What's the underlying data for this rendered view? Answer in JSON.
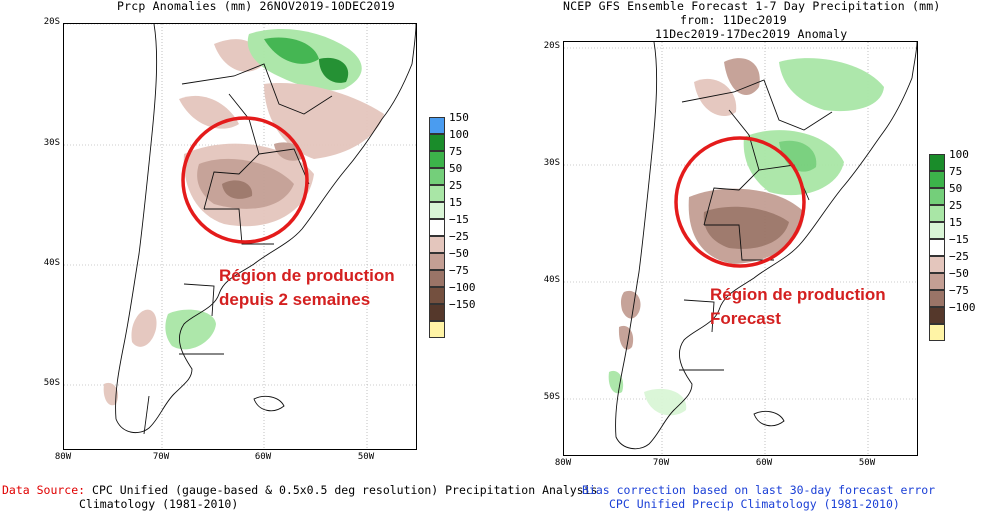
{
  "left": {
    "title": "Prcp Anomalies (mm) 26NOV2019-10DEC2019",
    "lat_labels": [
      "20S",
      "30S",
      "40S",
      "50S"
    ],
    "lon_labels": [
      "80W",
      "70W",
      "60W",
      "50W"
    ],
    "legend": [
      {
        "label": "150",
        "color": "#4a9cf0"
      },
      {
        "label": "100",
        "color": "#1a8c2a"
      },
      {
        "label": "75",
        "color": "#3cb34a"
      },
      {
        "label": "50",
        "color": "#74cf7a"
      },
      {
        "label": "25",
        "color": "#a9e6a6"
      },
      {
        "label": "15",
        "color": "#d9f5d6"
      },
      {
        "label": "−15",
        "color": "#ffffff"
      },
      {
        "label": "−25",
        "color": "#e4c6bd"
      },
      {
        "label": "−50",
        "color": "#c49f94"
      },
      {
        "label": "−75",
        "color": "#9a7467"
      },
      {
        "label": "−100",
        "color": "#74503f"
      },
      {
        "label": "−150",
        "color": "#55382b"
      }
    ],
    "legend_bottom_color": "#fff4a6",
    "annotation_line1": "Région de production",
    "annotation_line2": "depuis 2 semaines",
    "footer_label": "Data Source:",
    "footer_line1": "CPC Unified (gauge-based & 0.5x0.5 deg resolution) Precipitation Analysis",
    "footer_line2": "Climatology (1981-2010)"
  },
  "right": {
    "title_line1": "NCEP GFS Ensemble Forecast 1-7 Day Precipitation (mm)",
    "title_line2": "from: 11Dec2019",
    "title_line3": "11Dec2019-17Dec2019 Anomaly",
    "lat_labels": [
      "20S",
      "30S",
      "40S",
      "50S"
    ],
    "lon_labels": [
      "80W",
      "70W",
      "60W",
      "50W"
    ],
    "legend": [
      {
        "label": "100",
        "color": "#1a8c2a"
      },
      {
        "label": "75",
        "color": "#3cb34a"
      },
      {
        "label": "50",
        "color": "#74cf7a"
      },
      {
        "label": "25",
        "color": "#a9e6a6"
      },
      {
        "label": "15",
        "color": "#d9f5d6"
      },
      {
        "label": "−15",
        "color": "#ffffff"
      },
      {
        "label": "−25",
        "color": "#e4c6bd"
      },
      {
        "label": "−50",
        "color": "#c49f94"
      },
      {
        "label": "−75",
        "color": "#9a7467"
      },
      {
        "label": "−100",
        "color": "#55382b"
      }
    ],
    "legend_bottom_color": "#fff4a6",
    "annotation_line1": "Région de production",
    "annotation_line2": "Forecast",
    "footer_line1": "Bias correction based on last 30-day forecast error",
    "footer_line2": "CPC Unified Precip Climatology (1981-2010)"
  },
  "colors": {
    "circle": "#e41b1b",
    "annotation": "#d42020",
    "footer_blue": "#1a3fd6",
    "footer_red": "#e00000"
  }
}
